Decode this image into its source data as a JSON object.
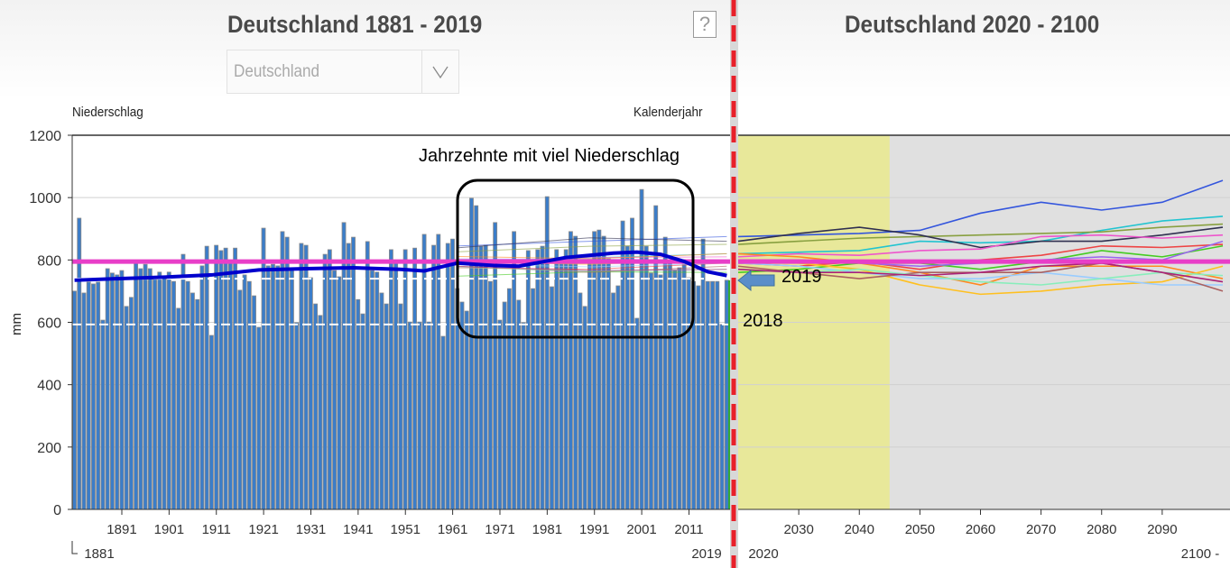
{
  "header": {
    "left_title": "Deutschland 1881 - 2019",
    "right_title": "Deutschland 2020 - 2100",
    "help_label": "?",
    "region_select": {
      "value": "Deutschland"
    }
  },
  "annotations": {
    "box_label": "Jahrzehnte mit viel Niederschlag",
    "arrow_label": "2019",
    "year_2018_label": "2018"
  },
  "colors": {
    "bar": "#3b7dc9",
    "trend": "#0000cc",
    "reference": "#e83ec8",
    "divider": "#e8202a",
    "reference_period": "#e8e89a",
    "future_bg": "#e0e0e0"
  },
  "chart_data": {
    "type": "bar",
    "ylabel": "mm",
    "y_title": "Niederschlag",
    "x_title": "Kalenderjahr",
    "ylim": [
      0,
      1200
    ],
    "y_ticks": [
      "0",
      "200",
      "400",
      "600",
      "800",
      "1000",
      "1200"
    ],
    "grid": true,
    "historical": {
      "x_start": 1881,
      "x_end": 2019,
      "tick_labels": [
        "1891",
        "1901",
        "1911",
        "1921",
        "1931",
        "1941",
        "1951",
        "1961",
        "1971",
        "1981",
        "1991",
        "2001",
        "2011"
      ],
      "range_start_label": "1881",
      "range_end_label": "2019",
      "values": [
        700,
        934,
        694,
        729,
        723,
        729,
        607,
        772,
        758,
        752,
        766,
        651,
        680,
        789,
        772,
        786,
        772,
        746,
        761,
        743,
        761,
        731,
        645,
        818,
        731,
        694,
        673,
        781,
        844,
        558,
        847,
        830,
        838,
        800,
        838,
        703,
        752,
        731,
        685,
        584,
        902,
        781,
        786,
        781,
        891,
        873,
        775,
        599,
        853,
        847,
        743,
        659,
        622,
        818,
        833,
        766,
        746,
        920,
        853,
        873,
        673,
        627,
        859,
        766,
        761,
        694,
        659,
        833,
        795,
        659,
        833,
        601,
        838,
        601,
        882,
        601,
        847,
        882,
        555,
        853,
        867,
        708,
        665,
        636,
        998,
        974,
        844,
        847,
        731,
        920,
        607,
        665,
        708,
        891,
        671,
        599,
        830,
        708,
        833,
        844,
        1003,
        714,
        833,
        795,
        833,
        891,
        876,
        694,
        651,
        801,
        891,
        896,
        876,
        804,
        694,
        717,
        925,
        844,
        934,
        613,
        1026,
        844,
        758,
        974,
        752,
        873,
        795,
        766,
        775,
        786,
        743,
        731,
        717,
        867,
        731,
        731,
        731,
        593,
        735
      ],
      "trend": {
        "years": [
          1881,
          1890,
          1900,
          1910,
          1920,
          1930,
          1940,
          1950,
          1955,
          1962,
          1970,
          1975,
          1985,
          1995,
          2000,
          2005,
          2010,
          2015,
          2019
        ],
        "values": [
          735,
          740,
          745,
          752,
          768,
          772,
          775,
          770,
          765,
          790,
          782,
          780,
          808,
          822,
          825,
          818,
          795,
          762,
          750
        ]
      },
      "reference_value": 795
    },
    "projection": {
      "x_start": 2020,
      "x_end": 2100,
      "tick_labels": [
        "2030",
        "2040",
        "2050",
        "2060",
        "2070",
        "2080",
        "2090"
      ],
      "range_start_label": "2020",
      "range_end_label": "2100 -",
      "reference_period": [
        2020,
        2045
      ],
      "years": [
        2020,
        2030,
        2040,
        2050,
        2060,
        2070,
        2080,
        2090,
        2100
      ],
      "series": [
        {
          "color": "#3355dd",
          "values": [
            875,
            880,
            885,
            895,
            950,
            985,
            960,
            985,
            1055
          ]
        },
        {
          "color": "#22c4d0",
          "values": [
            820,
            825,
            830,
            860,
            855,
            860,
            895,
            925,
            940
          ]
        },
        {
          "color": "#88a040",
          "values": [
            850,
            860,
            870,
            875,
            880,
            885,
            890,
            905,
            915
          ]
        },
        {
          "color": "#303050",
          "values": [
            860,
            885,
            905,
            880,
            840,
            860,
            860,
            880,
            905
          ]
        },
        {
          "color": "#ee55cc",
          "values": [
            810,
            820,
            815,
            830,
            835,
            875,
            880,
            870,
            880
          ]
        },
        {
          "color": "#ee4444",
          "values": [
            790,
            780,
            795,
            770,
            800,
            815,
            845,
            840,
            850
          ]
        },
        {
          "color": "#44cc22",
          "values": [
            760,
            770,
            790,
            790,
            770,
            795,
            830,
            810,
            845
          ]
        },
        {
          "color": "#ff8820",
          "values": [
            820,
            810,
            790,
            760,
            720,
            780,
            780,
            780,
            740
          ]
        },
        {
          "color": "#ffc020",
          "values": [
            800,
            790,
            770,
            720,
            690,
            700,
            720,
            730,
            780
          ]
        },
        {
          "color": "#99ccff",
          "values": [
            790,
            780,
            760,
            740,
            740,
            760,
            740,
            720,
            720
          ]
        },
        {
          "color": "#aa6060",
          "values": [
            780,
            760,
            740,
            760,
            760,
            760,
            790,
            760,
            700
          ]
        },
        {
          "color": "#9966ee",
          "values": [
            800,
            800,
            790,
            780,
            790,
            800,
            810,
            800,
            860
          ]
        },
        {
          "color": "#88eebb",
          "values": [
            770,
            760,
            770,
            750,
            730,
            720,
            740,
            760,
            750
          ]
        },
        {
          "color": "#aa2277",
          "values": [
            770,
            760,
            760,
            750,
            760,
            780,
            790,
            760,
            730
          ]
        }
      ]
    }
  }
}
